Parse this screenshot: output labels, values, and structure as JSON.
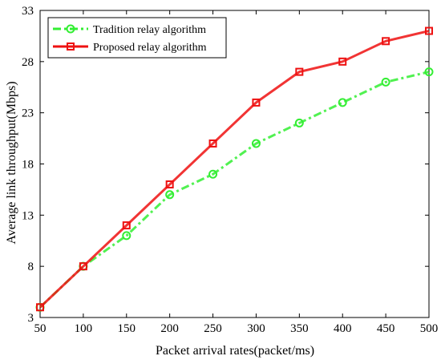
{
  "chart_data": {
    "type": "line",
    "title": "",
    "xlabel": "Packet arrival rates(packet/ms)",
    "ylabel": "Average link throughput(Mbps)",
    "x": [
      50,
      100,
      150,
      200,
      250,
      300,
      350,
      400,
      450,
      500
    ],
    "xlim": [
      50,
      500
    ],
    "ylim": [
      3,
      33
    ],
    "xticks": [
      50,
      100,
      150,
      200,
      250,
      300,
      350,
      400,
      450,
      500
    ],
    "yticks": [
      3,
      8,
      13,
      18,
      23,
      28,
      33
    ],
    "grid": false,
    "legend_position": "top-left",
    "series": [
      {
        "name": "Tradition relay algorithm",
        "color": "#33ee33",
        "line_style": "dash-dot",
        "marker": "circle",
        "values": [
          4,
          8,
          11,
          15,
          17,
          20,
          22,
          24,
          26,
          27
        ]
      },
      {
        "name": "Proposed relay algorithm",
        "color": "#ee1111",
        "line_style": "solid",
        "marker": "square",
        "values": [
          4,
          8,
          12,
          16,
          20,
          24,
          27,
          28,
          30,
          31
        ]
      }
    ]
  }
}
